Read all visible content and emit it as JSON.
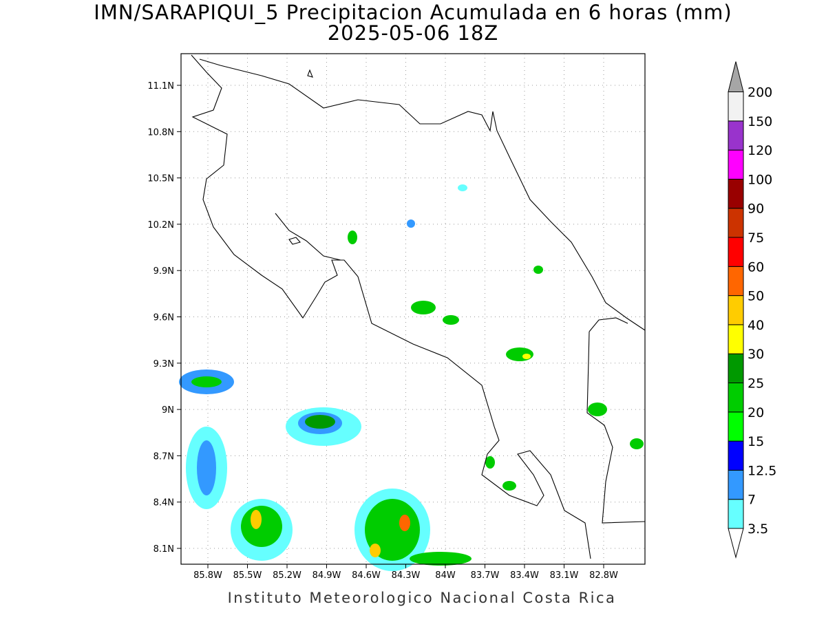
{
  "header": {
    "title": "IMN/SARAPIQUI_5 Precipitacion Acumulada en 6 horas (mm)",
    "subtitle": "2025-05-06 18Z"
  },
  "map": {
    "lat_labels": [
      "11.1N",
      "10.8N",
      "10.5N",
      "10.2N",
      "9.9N",
      "9.6N",
      "9.3N",
      "9N",
      "8.7N",
      "8.4N",
      "8.1N"
    ],
    "lon_labels": [
      "85.8W",
      "85.5W",
      "85.2W",
      "84.9W",
      "84.6W",
      "84.3W",
      "84W",
      "83.7W",
      "83.4W",
      "83.1W",
      "82.8W"
    ]
  },
  "colorbar": {
    "labels": [
      "3.5",
      "7",
      "12.5",
      "15",
      "20",
      "25",
      "30",
      "40",
      "50",
      "60",
      "75",
      "90",
      "100",
      "120",
      "150",
      "200"
    ],
    "colors": [
      "#66ffff",
      "#3399ff",
      "#0000ff",
      "#00ff00",
      "#00cc00",
      "#009900",
      "#ffff00",
      "#ffcc00",
      "#ff6600",
      "#ff0000",
      "#cc3300",
      "#990000",
      "#ff00ff",
      "#9933cc",
      "#f2f2f2"
    ],
    "under_color": "#ffffff",
    "over_color": "#a6a6a6"
  },
  "footer": {
    "text": "Instituto Meteorologico Nacional Costa Rica"
  }
}
